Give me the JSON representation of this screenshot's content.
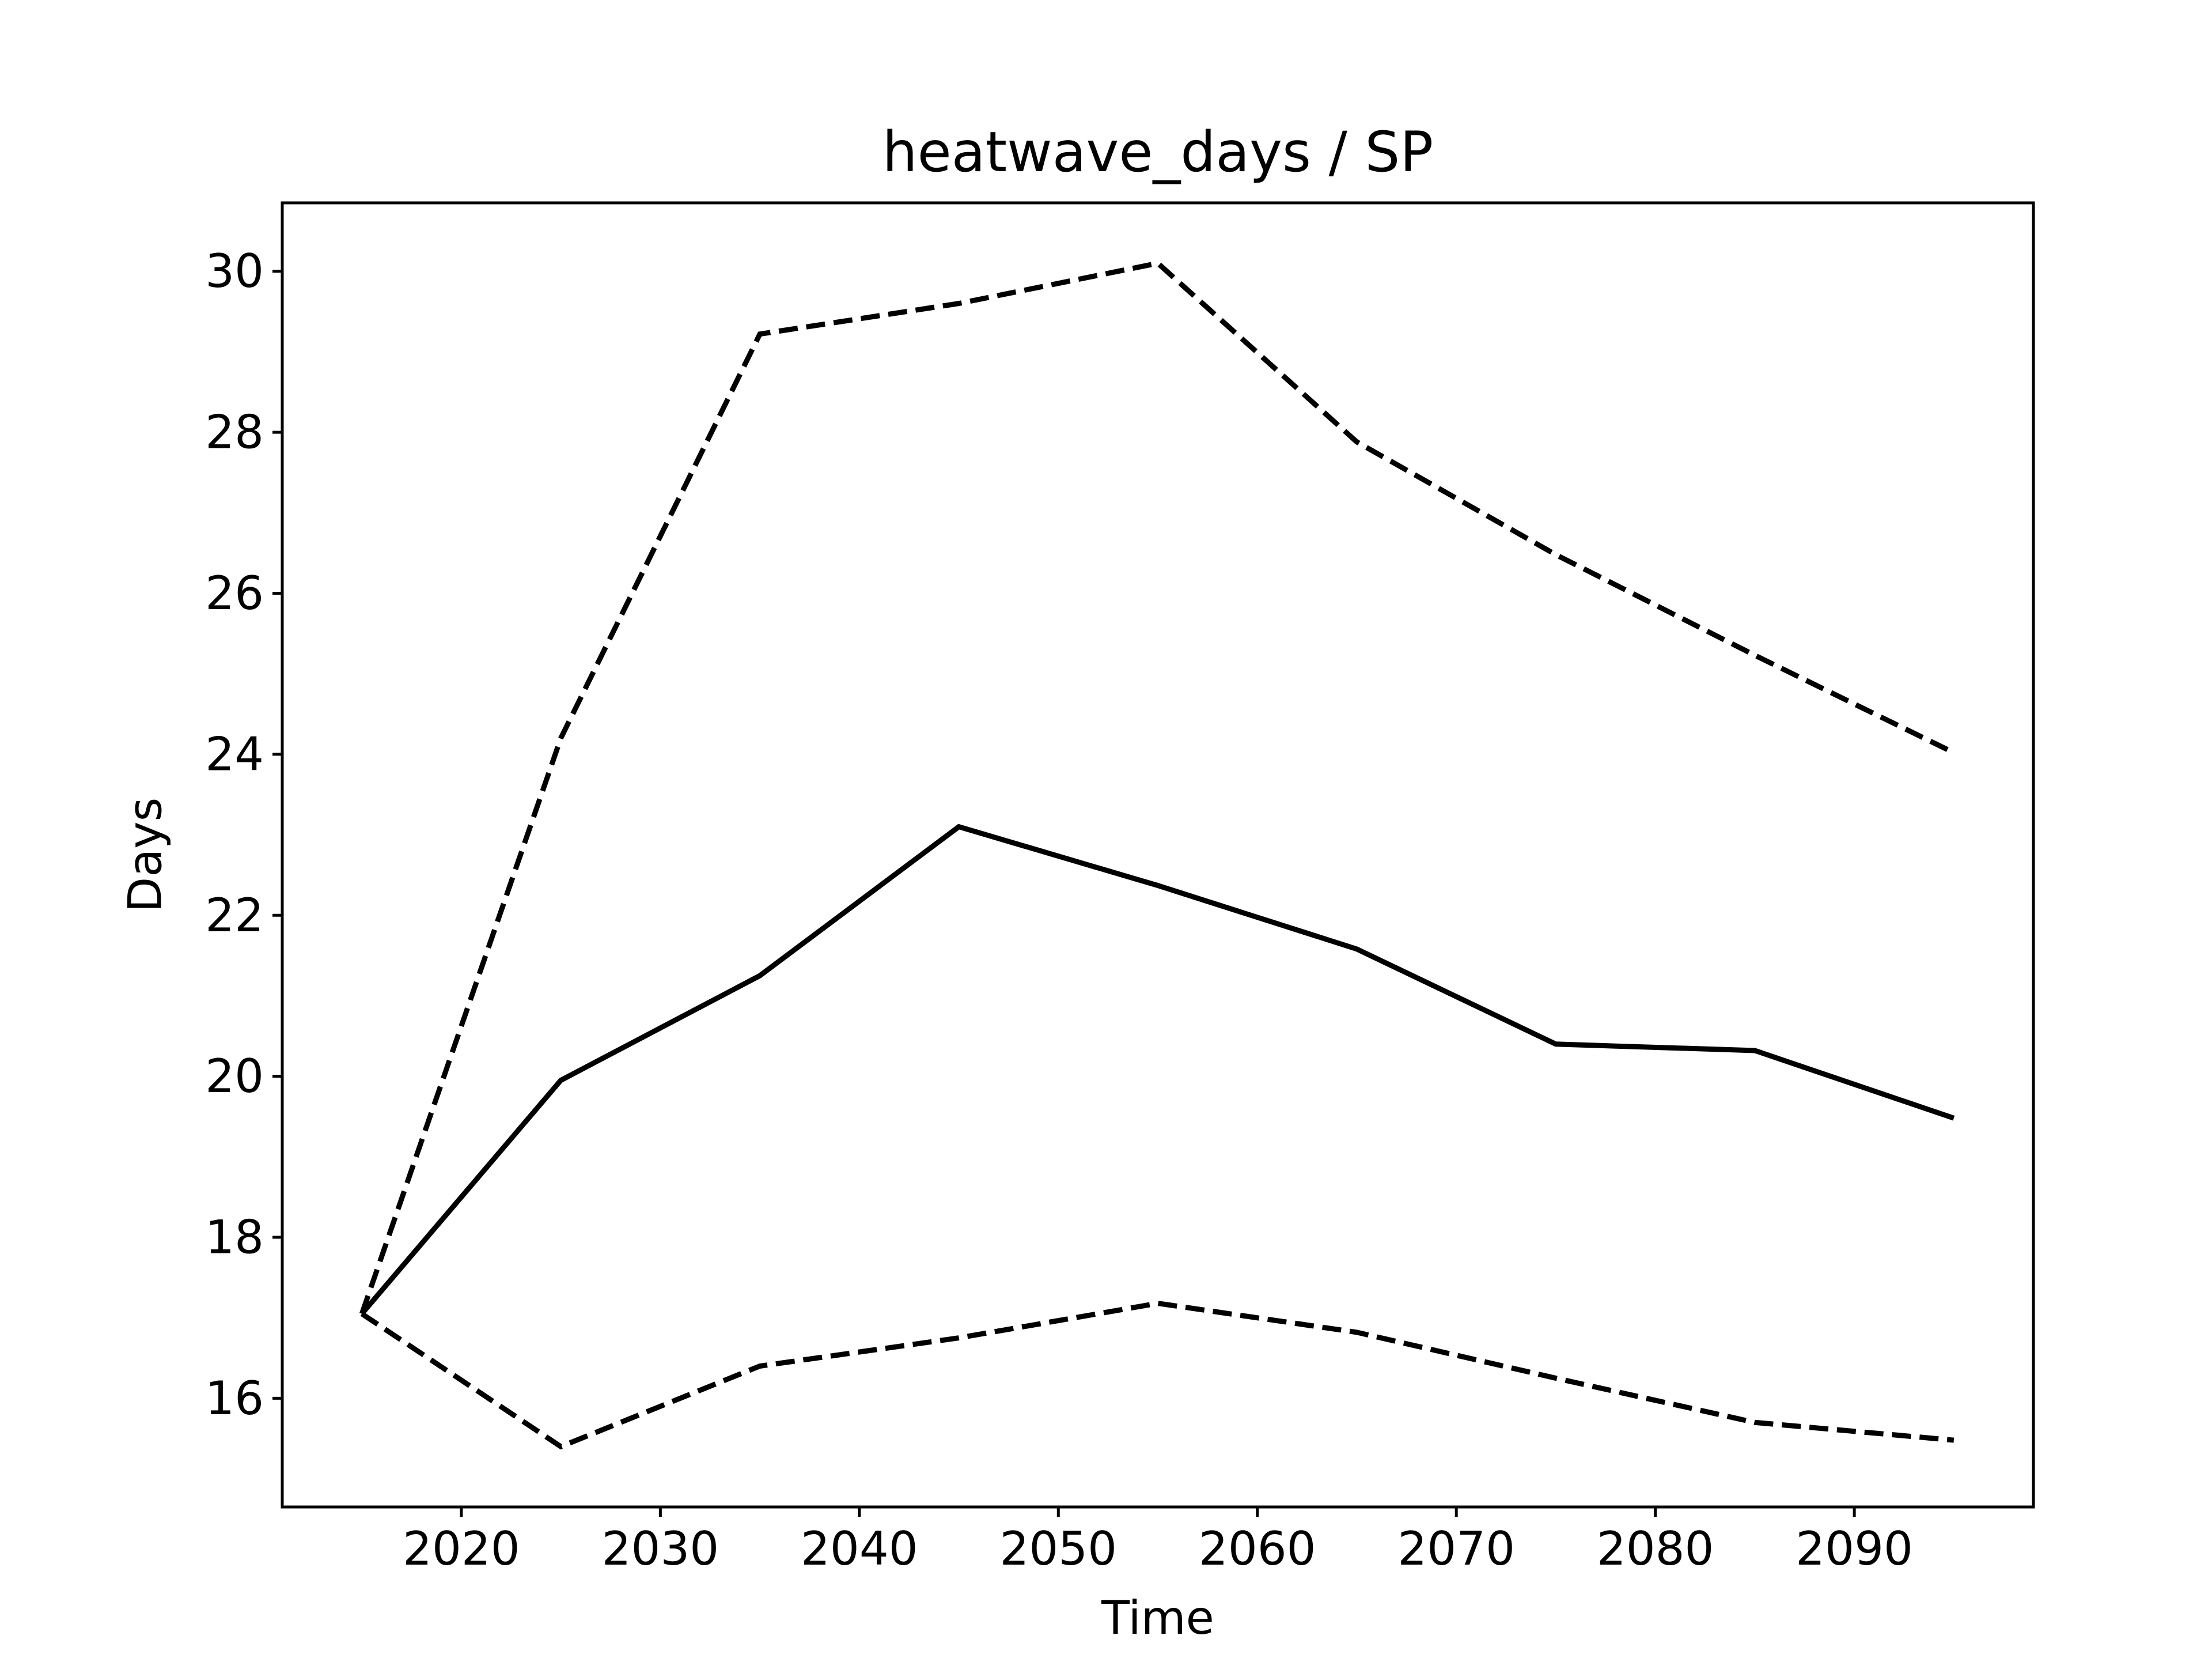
{
  "chart_data": {
    "type": "line",
    "title": "heatwave_days / SP",
    "xlabel": "Time",
    "ylabel": "Days",
    "xlim": [
      2011,
      2099
    ],
    "ylim": [
      14.65,
      30.85
    ],
    "xticks": [
      2020,
      2030,
      2040,
      2050,
      2060,
      2070,
      2080,
      2090
    ],
    "xtick_labels": [
      "2020",
      "2030",
      "2040",
      "2050",
      "2060",
      "2070",
      "2080",
      "2090"
    ],
    "yticks": [
      16,
      18,
      20,
      22,
      24,
      26,
      28,
      30
    ],
    "ytick_labels": [
      "16",
      "18",
      "20",
      "22",
      "24",
      "26",
      "28",
      "30"
    ],
    "grid": false,
    "legend": false,
    "x": [
      2015,
      2025,
      2035,
      2045,
      2055,
      2065,
      2075,
      2085,
      2095
    ],
    "series": [
      {
        "style": "solid",
        "color": "#000000",
        "values": [
          17.05,
          19.95,
          21.25,
          23.1,
          22.37,
          21.58,
          20.4,
          20.32,
          19.48
        ]
      },
      {
        "style": "dashed",
        "color": "#000000",
        "values": [
          17.05,
          24.2,
          29.22,
          29.6,
          30.1,
          27.88,
          26.48,
          25.23,
          24.02
        ]
      },
      {
        "style": "dashed",
        "color": "#000000",
        "values": [
          17.05,
          15.4,
          16.4,
          16.75,
          17.18,
          16.82,
          16.25,
          15.7,
          15.48
        ]
      }
    ]
  }
}
